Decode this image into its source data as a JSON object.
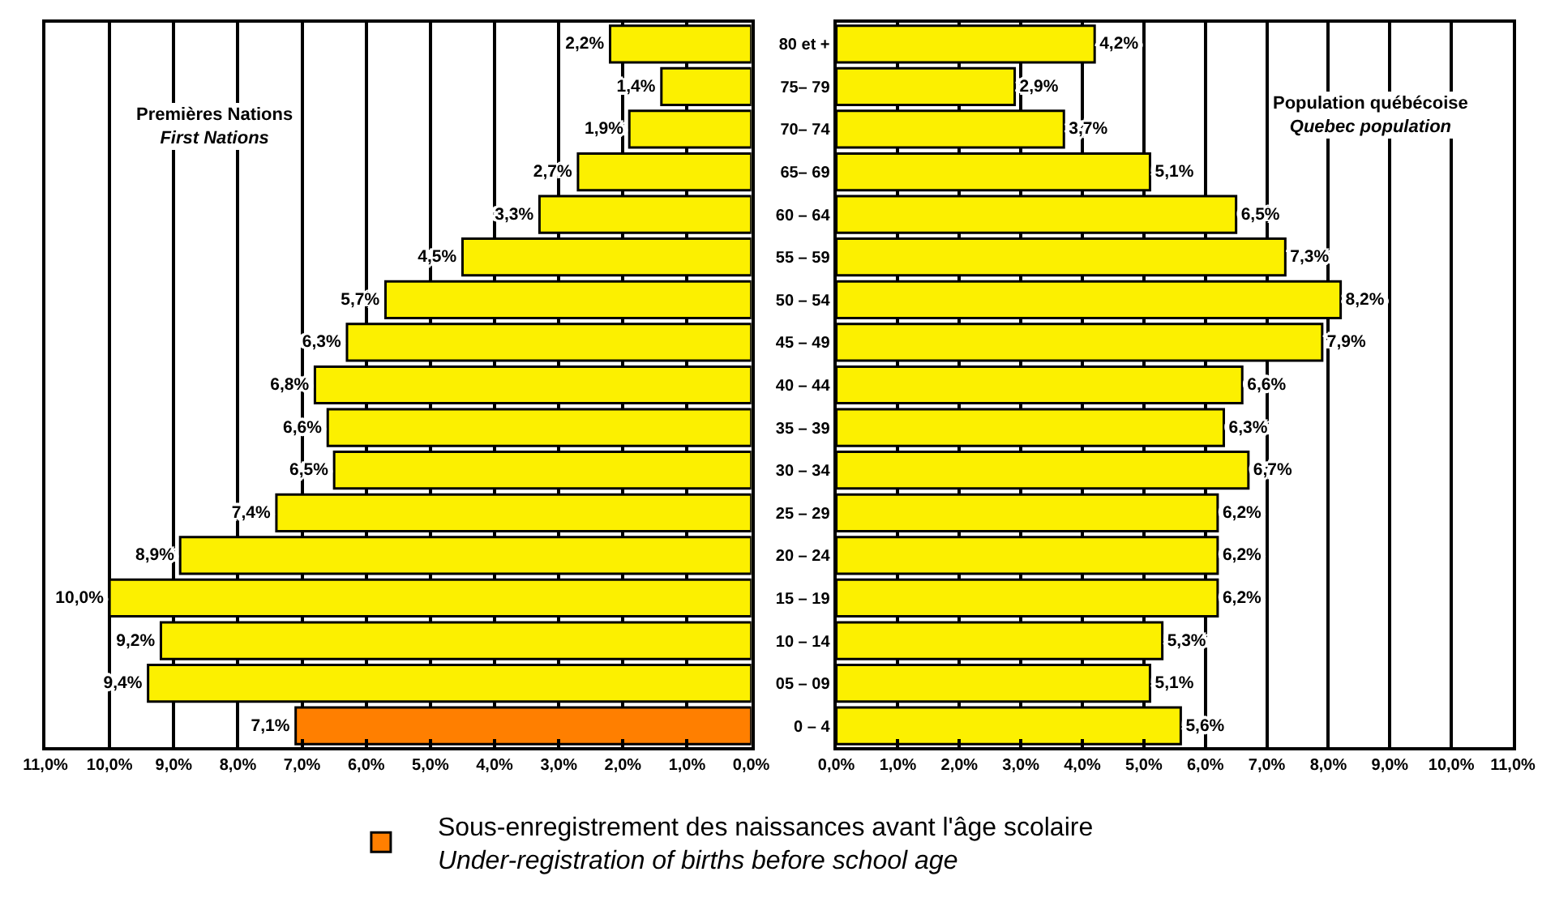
{
  "chart_data": [
    {
      "type": "bar",
      "orientation": "horizontal",
      "categories": [
        "80 et +",
        "75– 79",
        "70– 74",
        "65– 69",
        "60 – 64",
        "55 – 59",
        "50 – 54",
        "45 – 49",
        "40 – 44",
        "35 – 39",
        "30 – 34",
        "25 – 29",
        "20 – 24",
        "15 – 19",
        "10 – 14",
        "05 – 09",
        "0 – 4"
      ],
      "series": [
        {
          "color": "#fcf000",
          "values": [
            2.2,
            1.4,
            1.9,
            2.7,
            3.3,
            4.5,
            5.7,
            6.3,
            6.8,
            6.6,
            6.5,
            7.4,
            8.9,
            10.0,
            9.2,
            9.4,
            null
          ],
          "value_labels": [
            "2,2%",
            "1,4%",
            "1,9%",
            "2,7%",
            "3,3%",
            "4,5%",
            "5,7%",
            "6,3%",
            "6,8%",
            "6,6%",
            "6,5%",
            "7,4%",
            "8,9%",
            "10,0%",
            "9,2%",
            "9,4%",
            null
          ]
        },
        {
          "name": "Sous-enregistrement des naissances avant l'âge scolaire\nUnder-registration of births before school age",
          "color": "#ff7f00",
          "values": [
            null,
            null,
            null,
            null,
            null,
            null,
            null,
            null,
            null,
            null,
            null,
            null,
            null,
            null,
            null,
            null,
            7.1
          ],
          "value_labels": [
            null,
            null,
            null,
            null,
            null,
            null,
            null,
            null,
            null,
            null,
            null,
            null,
            null,
            null,
            null,
            null,
            "7,1%"
          ]
        }
      ],
      "xlim": [
        11,
        0
      ],
      "xticks": [
        {
          "value": 11,
          "label": "11,0%"
        },
        {
          "value": 10,
          "label": "10,0%"
        },
        {
          "value": 9,
          "label": "9,0%"
        },
        {
          "value": 8,
          "label": "8,0%"
        },
        {
          "value": 7,
          "label": "7,0%"
        },
        {
          "value": 6,
          "label": "6,0%"
        },
        {
          "value": 5,
          "label": "5,0%"
        },
        {
          "value": 4,
          "label": "4,0%"
        },
        {
          "value": 3,
          "label": "3,0%"
        },
        {
          "value": 2,
          "label": "2,0%"
        },
        {
          "value": 1,
          "label": "1,0%"
        },
        {
          "value": 0,
          "label": "0,0%"
        }
      ],
      "annotations": [
        "Premières Nations\nFirst Nations"
      ],
      "grid": "x",
      "legend": "bottom",
      "tick_labels": "x"
    },
    {
      "type": "bar",
      "orientation": "horizontal",
      "categories": [
        "80 et +",
        "75– 79",
        "70– 74",
        "65– 69",
        "60 – 64",
        "55 – 59",
        "50 – 54",
        "45 – 49",
        "40 – 44",
        "35 – 39",
        "30 – 34",
        "25 – 29",
        "20 – 24",
        "15 – 19",
        "10 – 14",
        "05 – 09",
        "0 – 4"
      ],
      "series": [
        {
          "color": "#fcf000",
          "values": [
            4.2,
            2.9,
            3.7,
            5.1,
            6.5,
            7.3,
            8.2,
            7.9,
            6.6,
            6.3,
            6.7,
            6.2,
            6.2,
            6.2,
            5.3,
            5.1,
            5.6
          ],
          "value_labels": [
            "4,2%",
            "2,9%",
            "3,7%",
            "5,1%",
            "6,5%",
            "7,3%",
            "8,2%",
            "7,9%",
            "6,6%",
            "6,3%",
            "6,7%",
            "6,2%",
            "6,2%",
            "6,2%",
            "5,3%",
            "5,1%",
            "5,6%"
          ]
        }
      ],
      "xlim": [
        0,
        11
      ],
      "xticks": [
        {
          "value": 0,
          "label": "0,0%"
        },
        {
          "value": 1,
          "label": "1,0%"
        },
        {
          "value": 2,
          "label": "2,0%"
        },
        {
          "value": 3,
          "label": "3,0%"
        },
        {
          "value": 4,
          "label": "4,0%"
        },
        {
          "value": 5,
          "label": "5,0%"
        },
        {
          "value": 6,
          "label": "6,0%"
        },
        {
          "value": 7,
          "label": "7,0%"
        },
        {
          "value": 8,
          "label": "8,0%"
        },
        {
          "value": 9,
          "label": "9,0%"
        },
        {
          "value": 10,
          "label": "10,0%"
        },
        {
          "value": 11,
          "label": "11,0%"
        }
      ],
      "annotations": [
        "Population québécoise\nQuebec population"
      ],
      "grid": "x"
    }
  ]
}
